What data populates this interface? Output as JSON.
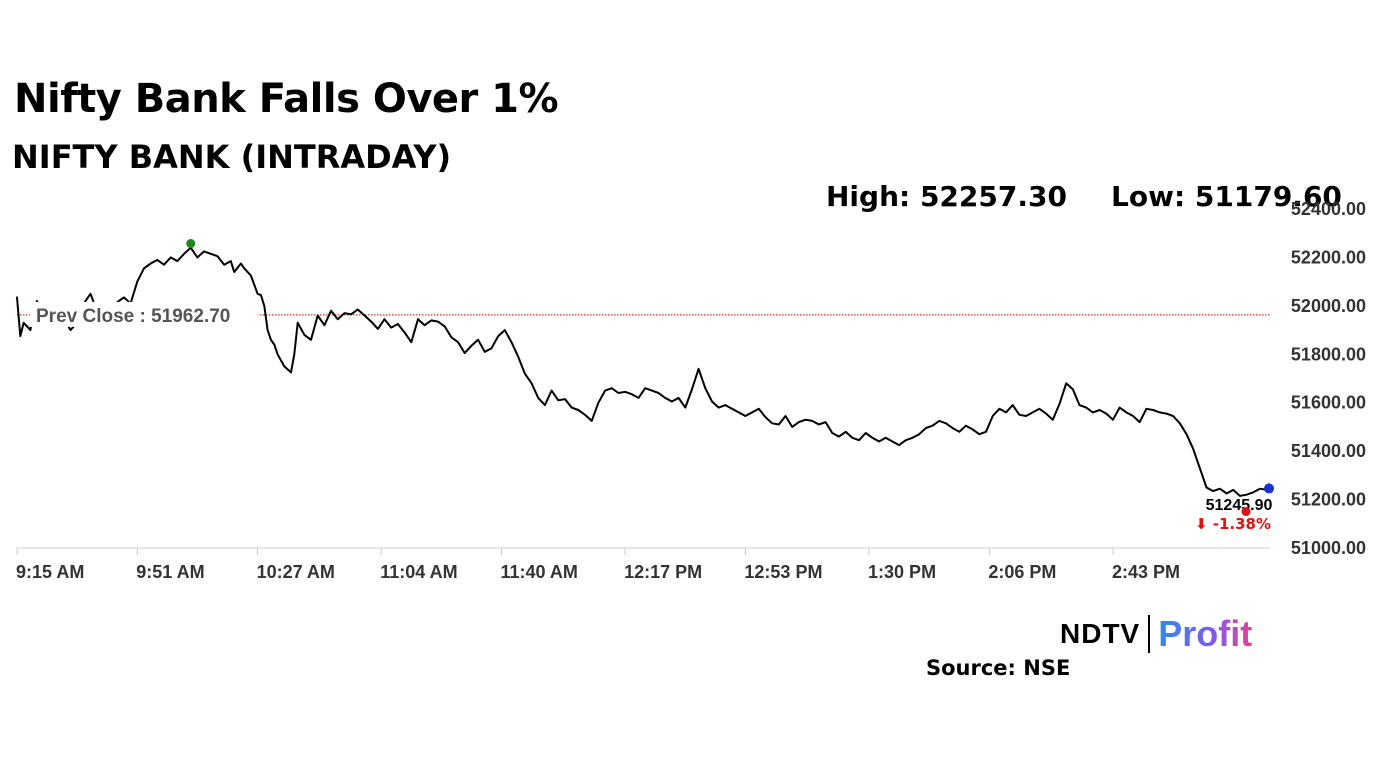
{
  "title": "Nifty Bank Falls Over 1%",
  "subtitle": "NIFTY BANK (INTRADAY)",
  "stats": {
    "high": "High: 52257.30",
    "low": "Low: 51179.60"
  },
  "source": "Source: NSE",
  "logo": {
    "brand": "NDTV",
    "product": "Profit"
  },
  "colors": {
    "line": "#000000",
    "prev_close_line": "#cc0000",
    "high_marker": "#1a8a1a",
    "low_marker": "#e01010",
    "last_marker": "#1a33cc",
    "change_text": "#e01010",
    "axis_text": "#333333"
  },
  "chart_data": {
    "type": "line",
    "title": "NIFTY BANK (INTRADAY)",
    "xlabel": "",
    "ylabel": "",
    "ylim": [
      51000,
      52400
    ],
    "yticks": [
      "52400.00",
      "52200.00",
      "52000.00",
      "51800.00",
      "51600.00",
      "51400.00",
      "51200.00",
      "51000.00"
    ],
    "ytick_values": [
      52400,
      52200,
      52000,
      51800,
      51600,
      51400,
      51200,
      51000
    ],
    "xlim": [
      0,
      375
    ],
    "xticks": [
      "9:15 AM",
      "9:51 AM",
      "10:27 AM",
      "11:04 AM",
      "11:40 AM",
      "12:17 PM",
      "12:53 PM",
      "1:30 PM",
      "2:06 PM",
      "2:43 PM"
    ],
    "xtick_minutes": [
      0,
      36,
      72,
      109,
      145,
      182,
      218,
      255,
      291,
      328
    ],
    "grid": false,
    "prev_close": {
      "label": "Prev Close : 51962.70",
      "value": 51962.7
    },
    "high": 52257.3,
    "low": 51179.6,
    "last_value_label": "51245.90",
    "change_label": "-1.38%",
    "change_arrow": "⬇",
    "series": [
      {
        "minutes": [
          0,
          1,
          2,
          4,
          5,
          6,
          8,
          10,
          12,
          14,
          16,
          18,
          20,
          22,
          24,
          26,
          28,
          30,
          32,
          34,
          36,
          38,
          40,
          42,
          44,
          46,
          48,
          50,
          52,
          54,
          56,
          58,
          60,
          62,
          64,
          65,
          67,
          68,
          70,
          72,
          73,
          74,
          75,
          76,
          77,
          78,
          80,
          82,
          83,
          84,
          86,
          88,
          90,
          92,
          94,
          96,
          98,
          100,
          102,
          104,
          106,
          108,
          110,
          112,
          114,
          116,
          118,
          120,
          122,
          124,
          126,
          128,
          130,
          132,
          134,
          136,
          138,
          140,
          142,
          144,
          146,
          148,
          150,
          152,
          154,
          156,
          158,
          160,
          162,
          164,
          166,
          168,
          170,
          172,
          174,
          176,
          178,
          180,
          182,
          184,
          186,
          188,
          190,
          192,
          194,
          196,
          198,
          200,
          202,
          204,
          206,
          208,
          210,
          212,
          214,
          216,
          218,
          220,
          222,
          224,
          226,
          228,
          230,
          232,
          234,
          236,
          238,
          240,
          242,
          244,
          246,
          248,
          250,
          252,
          254,
          256,
          258,
          260,
          262,
          264,
          266,
          268,
          270,
          272,
          274,
          276,
          278,
          280,
          282,
          284,
          286,
          288,
          290,
          292,
          294,
          296,
          298,
          300,
          302,
          304,
          306,
          308,
          310,
          312,
          314,
          316,
          318,
          320,
          322,
          324,
          326,
          328,
          330,
          332,
          334,
          336,
          338,
          340,
          342,
          344,
          346,
          348,
          350,
          352,
          354,
          356,
          358,
          360,
          362,
          364,
          366,
          368,
          370,
          372,
          374,
          375
        ],
        "values": [
          52035,
          51875,
          51930,
          51900,
          51980,
          52020,
          51960,
          51985,
          51940,
          51950,
          51900,
          51930,
          52010,
          52050,
          51975,
          52010,
          51985,
          52015,
          52035,
          52010,
          52100,
          52155,
          52175,
          52190,
          52170,
          52200,
          52185,
          52215,
          52240,
          52200,
          52225,
          52215,
          52205,
          52170,
          52185,
          52140,
          52175,
          52155,
          52125,
          52050,
          52045,
          52000,
          51900,
          51860,
          51840,
          51800,
          51750,
          51725,
          51800,
          51930,
          51880,
          51860,
          51960,
          51920,
          51980,
          51945,
          51970,
          51965,
          51985,
          51960,
          51935,
          51905,
          51945,
          51910,
          51925,
          51890,
          51850,
          51945,
          51920,
          51940,
          51935,
          51915,
          51870,
          51850,
          51805,
          51835,
          51860,
          51810,
          51825,
          51875,
          51900,
          51850,
          51790,
          51720,
          51680,
          51620,
          51590,
          51650,
          51610,
          51615,
          51580,
          51570,
          51550,
          51525,
          51600,
          51650,
          51660,
          51640,
          51645,
          51635,
          51620,
          51660,
          51650,
          51640,
          51620,
          51605,
          51620,
          51580,
          51655,
          51740,
          51660,
          51605,
          51580,
          51590,
          51575,
          51560,
          51545,
          51560,
          51575,
          51540,
          51515,
          51510,
          51545,
          51500,
          51520,
          51530,
          51525,
          51510,
          51520,
          51475,
          51460,
          51480,
          51455,
          51445,
          51475,
          51455,
          51440,
          51455,
          51440,
          51425,
          51445,
          51455,
          51470,
          51495,
          51505,
          51525,
          51515,
          51495,
          51480,
          51505,
          51490,
          51470,
          51480,
          51545,
          51575,
          51560,
          51590,
          51550,
          51545,
          51560,
          51575,
          51555,
          51530,
          51595,
          51680,
          51655,
          51590,
          51580,
          51560,
          51570,
          51555,
          51530,
          51580,
          51560,
          51545,
          51520,
          51575,
          51570,
          51560,
          51555,
          51545,
          51515,
          51470,
          51410,
          51330,
          51250,
          51235,
          51245,
          51225,
          51240,
          51215,
          51220,
          51230,
          51245,
          51240,
          51246
        ]
      }
    ]
  }
}
